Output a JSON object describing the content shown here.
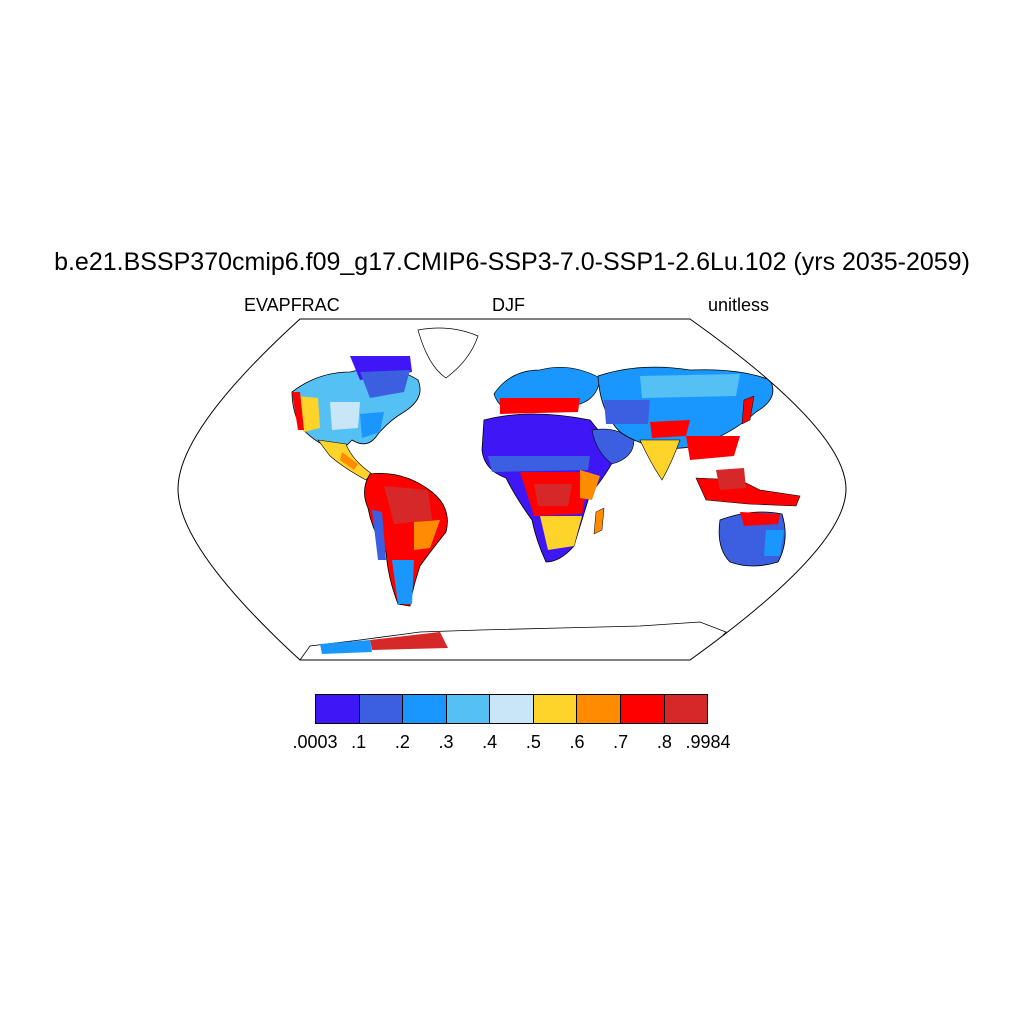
{
  "title": "b.e21.BSSP370cmip6.f09_g17.CMIP6-SSP3-7.0-SSP1-2.6Lu.102 (yrs 2035-2059)",
  "left_label": "EVAPFRAC",
  "center_label": "DJF",
  "right_label": "unitless",
  "colorbar": {
    "colors": [
      "#3f16f5",
      "#3b5fe0",
      "#1a96ff",
      "#55c0f4",
      "#c8e6f8",
      "#ffd42a",
      "#ff8c00",
      "#ff0000",
      "#d62828"
    ],
    "labels": [
      ".0003",
      ".1",
      ".2",
      ".3",
      ".4",
      ".5",
      ".6",
      ".7",
      ".8",
      ".9984"
    ]
  },
  "map": {
    "projection": "Robinson",
    "variable": "EVAPFRAC",
    "season": "DJF",
    "regions": [
      {
        "name": "Amazon basin",
        "value": 0.85
      },
      {
        "name": "Central Africa",
        "value": 0.8
      },
      {
        "name": "Sahara",
        "value": 0.05
      },
      {
        "name": "Arabian Peninsula",
        "value": 0.15
      },
      {
        "name": "Maritime Continent",
        "value": 0.85
      },
      {
        "name": "Australia interior",
        "value": 0.2
      },
      {
        "name": "Eastern North America",
        "value": 0.3
      },
      {
        "name": "Siberia",
        "value": 0.3
      },
      {
        "name": "Southern Africa",
        "value": 0.6
      }
    ]
  }
}
